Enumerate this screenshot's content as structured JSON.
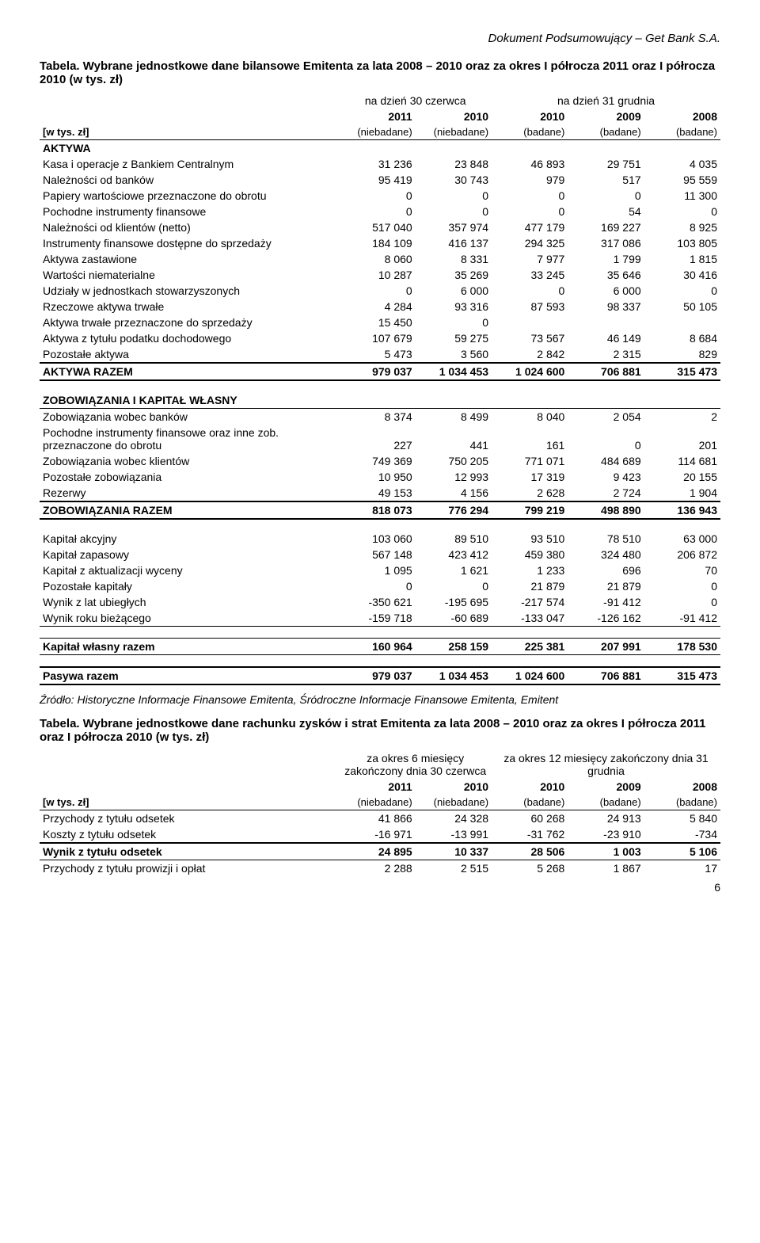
{
  "header": "Dokument Podsumowujący – Get Bank S.A.",
  "table1": {
    "title": "Tabela. Wybrane jednostkowe dane bilansowe Emitenta za lata 2008 – 2010 oraz za okres I półrocza 2011 oraz I półrocza 2010 (w tys. zł)",
    "period1": "na dzień 30 czerwca",
    "period2": "na dzień 31 grudnia",
    "years": [
      "2011",
      "2010",
      "2010",
      "2009",
      "2008"
    ],
    "unit_label": "[w tys. zł]",
    "subs": [
      "(niebadane)",
      "(niebadane)",
      "(badane)",
      "(badane)",
      "(badane)"
    ],
    "aktywa_header": "AKTYWA",
    "rows": [
      {
        "l": "Kasa i operacje z Bankiem Centralnym",
        "v": [
          "31 236",
          "23 848",
          "46 893",
          "29 751",
          "4 035"
        ]
      },
      {
        "l": "Należności od banków",
        "v": [
          "95 419",
          "30 743",
          "979",
          "517",
          "95 559"
        ]
      },
      {
        "l": "Papiery wartościowe przeznaczone do obrotu",
        "v": [
          "0",
          "0",
          "0",
          "0",
          "11 300"
        ]
      },
      {
        "l": "Pochodne instrumenty finansowe",
        "v": [
          "0",
          "0",
          "0",
          "54",
          "0"
        ]
      },
      {
        "l": "Należności od klientów (netto)",
        "v": [
          "517 040",
          "357 974",
          "477 179",
          "169 227",
          "8 925"
        ]
      },
      {
        "l": "Instrumenty finansowe dostępne do sprzedaży",
        "v": [
          "184 109",
          "416 137",
          "294 325",
          "317 086",
          "103 805"
        ]
      },
      {
        "l": "Aktywa zastawione",
        "v": [
          "8 060",
          "8 331",
          "7 977",
          "1 799",
          "1 815"
        ]
      },
      {
        "l": "Wartości niematerialne",
        "v": [
          "10 287",
          "35 269",
          "33 245",
          "35 646",
          "30 416"
        ]
      },
      {
        "l": "Udziały w jednostkach stowarzyszonych",
        "v": [
          "0",
          "6 000",
          "0",
          "6 000",
          "0"
        ]
      },
      {
        "l": "Rzeczowe aktywa trwałe",
        "v": [
          "4 284",
          "93 316",
          "87 593",
          "98 337",
          "50 105"
        ]
      },
      {
        "l": "Aktywa trwałe przeznaczone do sprzedaży",
        "v": [
          "15 450",
          "0",
          "",
          "",
          ""
        ]
      },
      {
        "l": "Aktywa z tytułu podatku dochodowego",
        "v": [
          "107 679",
          "59 275",
          "73 567",
          "46 149",
          "8 684"
        ]
      },
      {
        "l": "Pozostałe aktywa",
        "v": [
          "5 473",
          "3 560",
          "2 842",
          "2 315",
          "829"
        ]
      }
    ],
    "aktywa_razem": {
      "l": "AKTYWA RAZEM",
      "v": [
        "979 037",
        "1 034 453",
        "1 024 600",
        "706 881",
        "315 473"
      ]
    },
    "zobkap_header": "ZOBOWIĄZANIA I KAPITAŁ WŁASNY",
    "zob_rows": [
      {
        "l": "Zobowiązania wobec banków",
        "v": [
          "8 374",
          "8 499",
          "8 040",
          "2 054",
          "2"
        ]
      },
      {
        "l": "Pochodne instrumenty finansowe oraz inne zob. przeznaczone do obrotu",
        "v": [
          "227",
          "441",
          "161",
          "0",
          "201"
        ]
      },
      {
        "l": "Zobowiązania wobec klientów",
        "v": [
          "749 369",
          "750 205",
          "771 071",
          "484 689",
          "114 681"
        ]
      },
      {
        "l": "Pozostałe zobowiązania",
        "v": [
          "10 950",
          "12 993",
          "17 319",
          "9 423",
          "20 155"
        ]
      },
      {
        "l": "Rezerwy",
        "v": [
          "49 153",
          "4 156",
          "2 628",
          "2 724",
          "1 904"
        ]
      }
    ],
    "zob_razem": {
      "l": "ZOBOWIĄZANIA RAZEM",
      "v": [
        "818 073",
        "776 294",
        "799 219",
        "498 890",
        "136 943"
      ]
    },
    "kap_rows": [
      {
        "l": "Kapitał akcyjny",
        "v": [
          "103 060",
          "89 510",
          "93 510",
          "78 510",
          "63 000"
        ]
      },
      {
        "l": "Kapitał zapasowy",
        "v": [
          "567 148",
          "423 412",
          "459 380",
          "324 480",
          "206 872"
        ]
      },
      {
        "l": "Kapitał z aktualizacji wyceny",
        "v": [
          "1 095",
          "1 621",
          "1 233",
          "696",
          "70"
        ]
      },
      {
        "l": "Pozostałe kapitały",
        "v": [
          "0",
          "0",
          "21 879",
          "21 879",
          "0"
        ]
      },
      {
        "l": "Wynik z lat ubiegłych",
        "v": [
          "-350 621",
          "-195 695",
          "-217 574",
          "-91 412",
          "0"
        ]
      },
      {
        "l": "Wynik roku bieżącego",
        "v": [
          "-159 718",
          "-60 689",
          "-133 047",
          "-126 162",
          "-91 412"
        ]
      }
    ],
    "kap_razem": {
      "l": "Kapitał własny razem",
      "v": [
        "160 964",
        "258 159",
        "225 381",
        "207 991",
        "178 530"
      ]
    },
    "pasywa_razem": {
      "l": "Pasywa razem",
      "v": [
        "979 037",
        "1 034 453",
        "1 024 600",
        "706 881",
        "315 473"
      ]
    }
  },
  "source_note": "Źródło: Historyczne Informacje Finansowe Emitenta, Śródroczne Informacje Finansowe Emitenta, Emitent",
  "table2": {
    "title": "Tabela. Wybrane jednostkowe dane rachunku zysków i strat Emitenta za lata 2008 – 2010 oraz za okres I półrocza 2011 oraz I półrocza 2010 (w tys. zł)",
    "period1": "za okres 6 miesięcy zakończony dnia 30 czerwca",
    "period2": "za okres 12 miesięcy zakończony dnia 31 grudnia",
    "years": [
      "2011",
      "2010",
      "2010",
      "2009",
      "2008"
    ],
    "subs": [
      "(niebadane)",
      "(niebadane)",
      "(badane)",
      "(badane)",
      "(badane)"
    ],
    "unit_label": "[w tys. zł]",
    "rows": [
      {
        "l": "Przychody z tytułu odsetek",
        "v": [
          "41 866",
          "24 328",
          "60 268",
          "24 913",
          "5 840"
        ]
      },
      {
        "l": "Koszty z tytułu odsetek",
        "v": [
          "-16 971",
          "-13 991",
          "-31 762",
          "-23 910",
          "-734"
        ]
      }
    ],
    "wynik": {
      "l": "Wynik z tytułu odsetek",
      "v": [
        "24 895",
        "10 337",
        "28 506",
        "1 003",
        "5 106"
      ]
    },
    "last": {
      "l": "Przychody z tytułu prowizji i opłat",
      "v": [
        "2 288",
        "2 515",
        "5 268",
        "1 867",
        "17"
      ]
    }
  },
  "page_num": "6"
}
